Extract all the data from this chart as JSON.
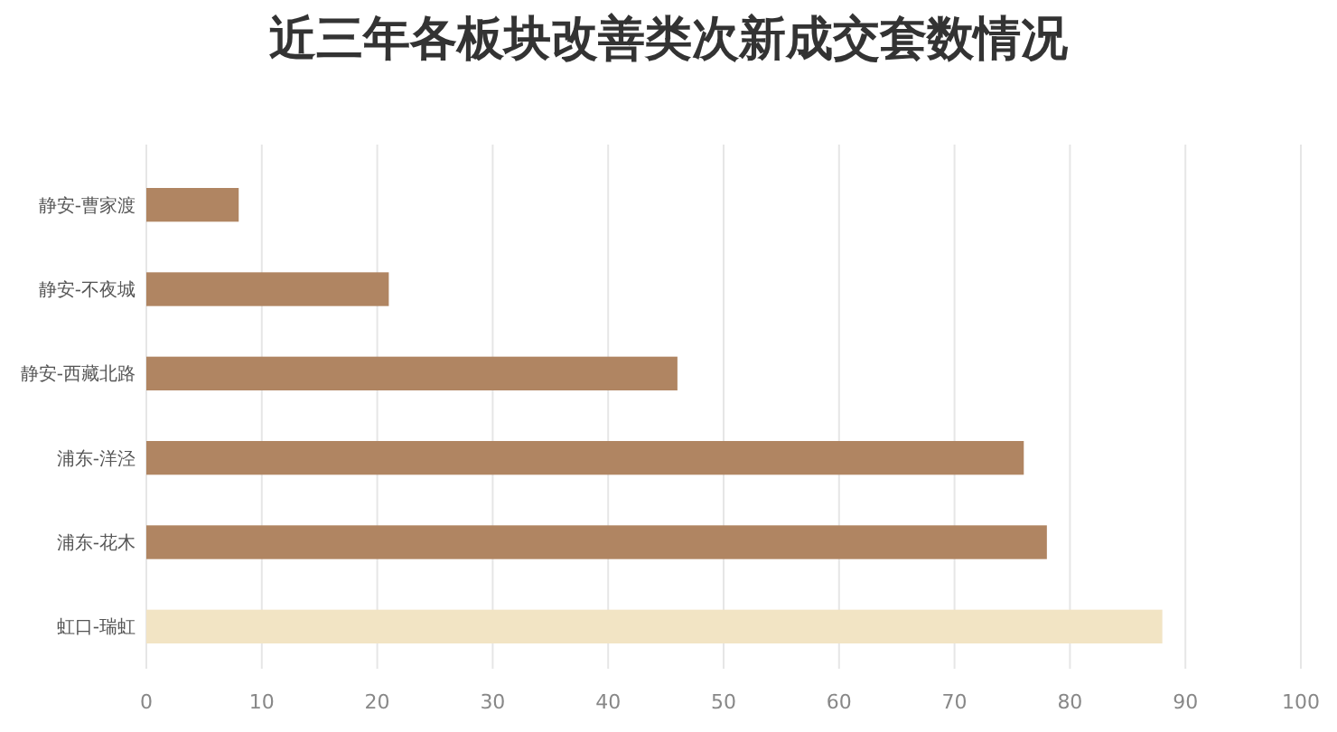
{
  "chart_data": {
    "type": "bar",
    "orientation": "horizontal",
    "title": "近三年各板块改善类次新成交套数情况",
    "categories": [
      "静安-曹家渡",
      "静安-不夜城",
      "静安-西藏北路",
      "浦东-洋泾",
      "浦东-花木",
      "虹口-瑞虹"
    ],
    "values": [
      8,
      21,
      46,
      76,
      78,
      88
    ],
    "colors": [
      "#b08562",
      "#b08562",
      "#b08562",
      "#b08562",
      "#b08562",
      "#f2e4c4"
    ],
    "xlim": [
      0,
      100
    ],
    "xticks": [
      0,
      10,
      20,
      30,
      40,
      50,
      60,
      70,
      80,
      90,
      100
    ],
    "grid": "x"
  }
}
